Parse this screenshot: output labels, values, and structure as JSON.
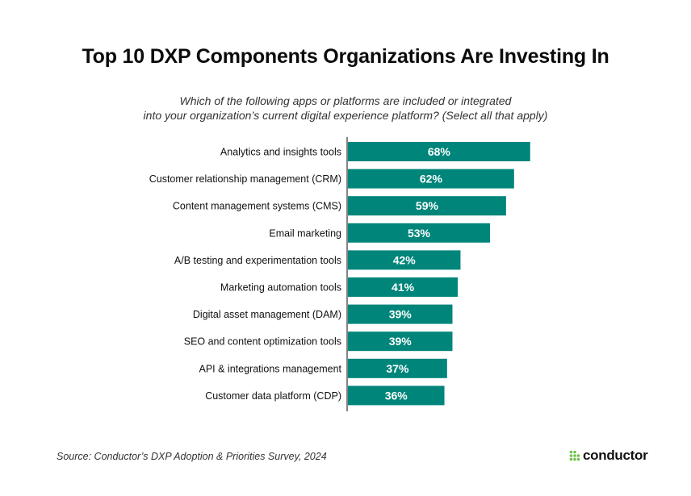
{
  "chart_data": {
    "type": "bar",
    "orientation": "horizontal",
    "title": "Top 10 DXP Components Organizations Are Investing In",
    "subtitle_lines": [
      "Which of the following apps or platforms are included or integrated",
      "into your organization’s current digital experience platform? (Select all that apply)"
    ],
    "categories": [
      "Analytics and insights tools",
      "Customer relationship management (CRM)",
      "Content management systems (CMS)",
      "Email marketing",
      "A/B testing and experimentation tools",
      "Marketing automation tools",
      "Digital asset management (DAM)",
      "SEO and content optimization tools",
      "API & integrations management",
      "Customer data platform (CDP)"
    ],
    "values": [
      68,
      62,
      59,
      53,
      42,
      41,
      39,
      39,
      37,
      36
    ],
    "value_labels": [
      "68%",
      "62%",
      "59%",
      "53%",
      "42%",
      "41%",
      "39%",
      "39%",
      "37%",
      "36%"
    ],
    "unit": "%",
    "xlim": [
      0,
      100
    ],
    "bar_color": "#00857a",
    "label_color": "#ffffff",
    "xlabel": "",
    "ylabel": "",
    "grid": false
  },
  "footer": {
    "source": "Source: Conductor’s DXP Adoption & Priorities Survey, 2024",
    "brand": "conductor",
    "brand_dot_color": "#6cc24a"
  }
}
